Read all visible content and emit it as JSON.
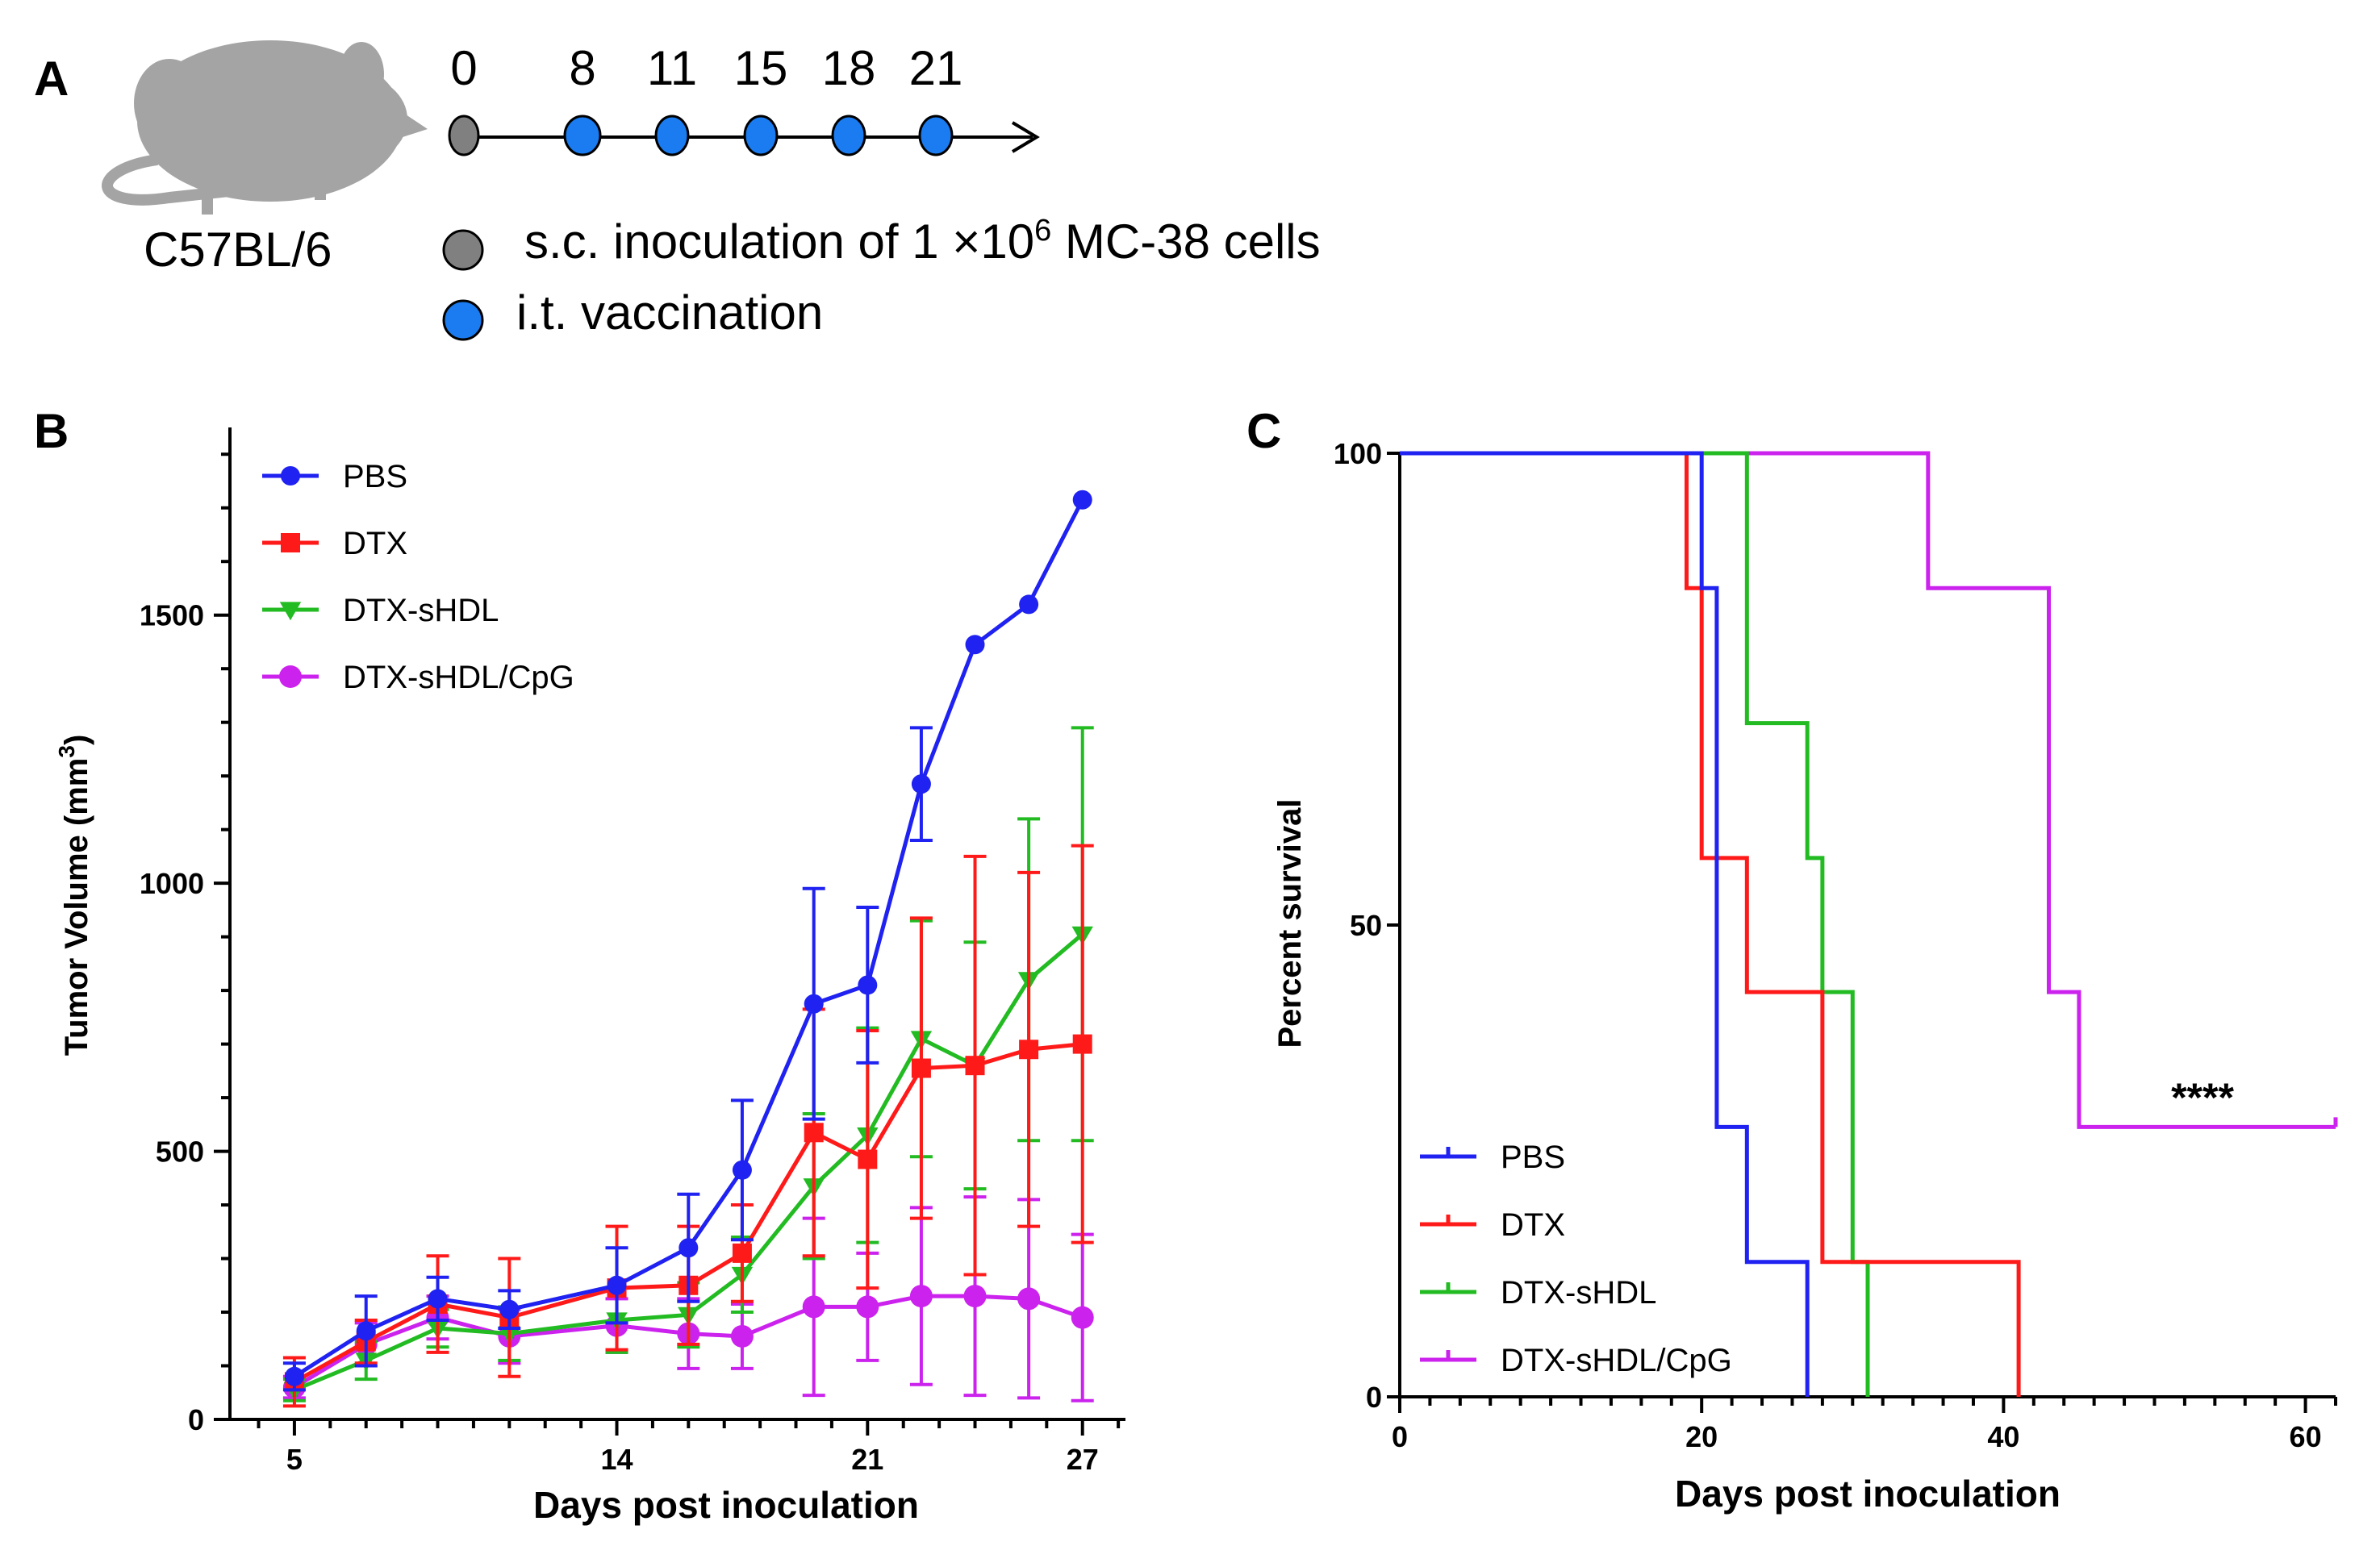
{
  "panels": {
    "a": "A",
    "b": "B",
    "c": "C"
  },
  "timeline": {
    "strain": "C57BL/6",
    "days": [
      "0",
      "8",
      "11",
      "15",
      "18",
      "21"
    ],
    "legend_inoculation_prefix": "s.c. inoculation of 1 ×10",
    "legend_inoculation_exp": "6",
    "legend_inoculation_suffix": " MC-38 cells",
    "legend_vaccination": "i.t. vaccination",
    "colors": {
      "inoculation": "#808080",
      "vaccination": "#1a7cf0"
    }
  },
  "chart_data": [
    {
      "id": "B",
      "type": "line",
      "title": "",
      "xlabel": "Days post inoculation",
      "ylabel_prefix": "Tumor Volume (mm",
      "ylabel_sup": "3",
      "ylabel_suffix": ")",
      "xlim": [
        3.2,
        28.2
      ],
      "ylim": [
        0,
        1850
      ],
      "xticks": [
        5,
        14,
        21,
        27
      ],
      "yticks": [
        0,
        500,
        1000,
        1500
      ],
      "x": [
        5,
        7,
        9,
        11,
        13,
        15,
        17,
        19,
        21,
        23,
        25,
        27
      ],
      "legend_position": "top-left",
      "series": [
        {
          "name": "PBS",
          "color": "#1f22f0",
          "marker": "circle",
          "x": [
            5,
            7,
            9,
            11,
            14,
            16,
            17.5,
            19.5,
            21,
            22.5,
            24,
            25.5,
            27
          ],
          "values": [
            80,
            165,
            225,
            205,
            250,
            320,
            465,
            775,
            810,
            1185,
            1445,
            1520,
            1715
          ],
          "err": [
            25,
            65,
            40,
            35,
            70,
            100,
            130,
            215,
            145,
            105,
            0,
            0,
            0
          ]
        },
        {
          "name": "DTX",
          "color": "#ff1a1a",
          "marker": "square",
          "x": [
            5,
            7,
            9,
            11,
            14,
            16,
            17.5,
            19.5,
            21,
            22.5,
            24,
            25.5,
            27
          ],
          "values": [
            70,
            145,
            215,
            190,
            245,
            250,
            310,
            535,
            485,
            655,
            660,
            690,
            700
          ],
          "err": [
            45,
            40,
            90,
            110,
            115,
            110,
            90,
            230,
            240,
            280,
            390,
            330,
            370
          ]
        },
        {
          "name": "DTX-sHDL",
          "color": "#22bb22",
          "marker": "triangle-down",
          "x": [
            5,
            7,
            9,
            11,
            14,
            16,
            17.5,
            19.5,
            21,
            22.5,
            24,
            25.5,
            27
          ],
          "values": [
            55,
            110,
            170,
            160,
            185,
            195,
            270,
            435,
            530,
            710,
            660,
            820,
            905
          ],
          "err": [
            20,
            35,
            35,
            50,
            60,
            60,
            70,
            135,
            200,
            220,
            230,
            300,
            385
          ]
        },
        {
          "name": "DTX-sHDL/CpG",
          "color": "#cc22ee",
          "marker": "circle",
          "x": [
            5,
            7,
            9,
            11,
            14,
            16,
            17.5,
            19.5,
            21,
            22.5,
            24,
            25.5,
            27
          ],
          "values": [
            60,
            140,
            190,
            155,
            175,
            160,
            155,
            210,
            210,
            230,
            230,
            225,
            190
          ],
          "err": [
            20,
            40,
            40,
            50,
            50,
            65,
            60,
            165,
            100,
            165,
            185,
            185,
            155
          ]
        }
      ]
    },
    {
      "id": "C",
      "type": "line",
      "step": true,
      "title": "",
      "xlabel": "Days post inoculation",
      "ylabel": "Percent survival",
      "xlim": [
        0,
        62
      ],
      "ylim": [
        0,
        100
      ],
      "xticks": [
        0,
        20,
        40,
        60
      ],
      "yticks": [
        0,
        50,
        100
      ],
      "annotation": "****",
      "legend_position": "bottom-left",
      "series": [
        {
          "name": "PBS",
          "color": "#1f22f0",
          "x": [
            0,
            20,
            21,
            23,
            27
          ],
          "values": [
            100,
            85.7,
            28.6,
            14.3,
            0
          ]
        },
        {
          "name": "DTX",
          "color": "#ff1a1a",
          "x": [
            0,
            19,
            20,
            23,
            28,
            41
          ],
          "values": [
            100,
            85.7,
            57.1,
            42.9,
            14.3,
            0
          ]
        },
        {
          "name": "DTX-sHDL",
          "color": "#22bb22",
          "x": [
            0,
            23,
            27,
            28,
            30,
            31
          ],
          "values": [
            100,
            71.4,
            57.1,
            42.9,
            14.3,
            0
          ]
        },
        {
          "name": "DTX-sHDL/CpG",
          "color": "#cc22ee",
          "x": [
            0,
            35,
            43,
            45,
            62
          ],
          "values": [
            100,
            85.7,
            42.9,
            28.6,
            28.6
          ]
        }
      ]
    }
  ]
}
